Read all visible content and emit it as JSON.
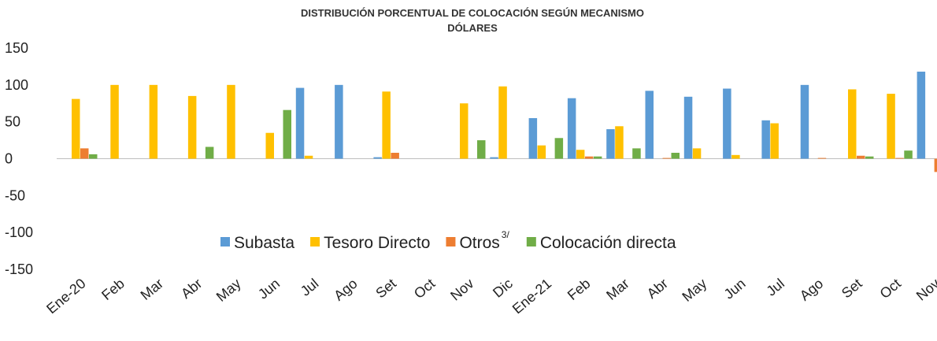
{
  "chart_data": {
    "type": "bar",
    "title": "DISTRIBUCIÓN PORCENTUAL DE COLOCACIÓN SEGÚN MECANISMO",
    "subtitle": "DÓLARES",
    "categories": [
      "Ene-20",
      "Feb",
      "Mar",
      "Abr",
      "May",
      "Jun",
      "Jul",
      "Ago",
      "Set",
      "Oct",
      "Nov",
      "Dic",
      "Ene-21",
      "Feb",
      "Mar",
      "Abr",
      "May",
      "Jun",
      "Jul",
      "Ago",
      "Set",
      "Oct",
      "Nov"
    ],
    "series": [
      {
        "name": "Subasta",
        "color": "#5b9bd5",
        "values": [
          0,
          0,
          0,
          0,
          0,
          0,
          96,
          100,
          2,
          0,
          0,
          2,
          55,
          82,
          40,
          92,
          84,
          95,
          52,
          100,
          0,
          0,
          118
        ]
      },
      {
        "name": "Tesoro Directo",
        "color": "#ffc000",
        "values": [
          81,
          100,
          100,
          85,
          100,
          35,
          4,
          0,
          91,
          0,
          75,
          98,
          18,
          12,
          44,
          0,
          14,
          5,
          48,
          0,
          94,
          88,
          0
        ]
      },
      {
        "name": "Otros",
        "footnote": "3/",
        "color": "#ed7d31",
        "values": [
          14,
          0,
          0,
          0,
          0,
          0,
          0,
          0,
          8,
          0,
          0,
          0,
          0,
          3,
          0,
          1,
          0,
          0,
          0,
          1,
          4,
          1,
          -18
        ]
      },
      {
        "name": "Colocación directa",
        "color": "#70ad47",
        "values": [
          6,
          0,
          0,
          16,
          0,
          66,
          0,
          0,
          0,
          0,
          25,
          0,
          28,
          3,
          14,
          8,
          0,
          0,
          0,
          0,
          3,
          11,
          0
        ]
      }
    ],
    "ylim": [
      -150,
      150
    ],
    "yticks": [
      -150,
      -100,
      -50,
      0,
      50,
      100,
      150
    ],
    "grid": false,
    "legend": "inside-bottom"
  }
}
